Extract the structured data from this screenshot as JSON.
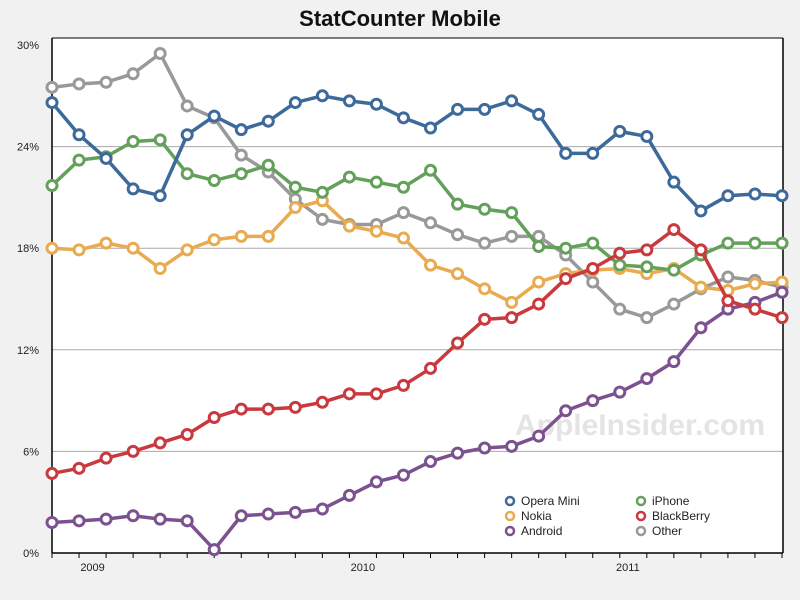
{
  "chart_data": {
    "type": "line",
    "title": "StatCounter Mobile",
    "watermark": "AppleInsider.com",
    "xlabel": "",
    "ylabel": "",
    "ylim": [
      0,
      30
    ],
    "yticks": [
      "0%",
      "6%",
      "12%",
      "18%",
      "24%",
      "30%"
    ],
    "ytick_values": [
      0,
      6,
      12,
      18,
      24,
      30
    ],
    "x_count": 28,
    "xtick_labels": [
      {
        "label": "2009",
        "at": 1.5
      },
      {
        "label": "2010",
        "at": 11.5
      },
      {
        "label": "2011",
        "at": 21.3
      }
    ],
    "grid": true,
    "legend_position": "bottom-right",
    "series": [
      {
        "name": "Opera Mini",
        "color": "#3d6a9a",
        "values": [
          26.6,
          24.7,
          23.3,
          21.5,
          21.1,
          24.7,
          25.8,
          25.0,
          25.5,
          26.6,
          27.0,
          26.7,
          26.5,
          25.7,
          25.1,
          26.2,
          26.2,
          26.7,
          25.9,
          23.6,
          23.6,
          24.9,
          24.6,
          21.9,
          20.2,
          21.1,
          21.2,
          21.1
        ]
      },
      {
        "name": "iPhone",
        "color": "#63a15a",
        "values": [
          21.7,
          23.2,
          23.4,
          24.3,
          24.4,
          22.4,
          22.0,
          22.4,
          22.9,
          21.6,
          21.3,
          22.2,
          21.9,
          21.6,
          22.6,
          20.6,
          20.3,
          20.1,
          18.1,
          18.0,
          18.3,
          17.0,
          16.9,
          16.7,
          17.6,
          18.3,
          18.3,
          18.3
        ]
      },
      {
        "name": "Nokia",
        "color": "#e8ab4f",
        "values": [
          18.0,
          17.9,
          18.3,
          18.0,
          16.8,
          17.9,
          18.5,
          18.7,
          18.7,
          20.4,
          20.8,
          19.3,
          19.0,
          18.6,
          17.0,
          16.5,
          15.6,
          14.8,
          16.0,
          16.5,
          16.7,
          16.8,
          16.5,
          16.8,
          15.7,
          15.5,
          15.9,
          16.0
        ]
      },
      {
        "name": "BlackBerry",
        "color": "#c9393d",
        "values": [
          4.7,
          5.0,
          5.6,
          6.0,
          6.5,
          7.0,
          8.0,
          8.5,
          8.5,
          8.6,
          8.9,
          9.4,
          9.4,
          9.9,
          10.9,
          12.4,
          13.8,
          13.9,
          14.7,
          16.2,
          16.8,
          17.7,
          17.9,
          19.1,
          17.9,
          14.9,
          14.4,
          13.9
        ]
      },
      {
        "name": "Android",
        "color": "#7c5190",
        "values": [
          1.8,
          1.9,
          2.0,
          2.2,
          2.0,
          1.9,
          0.2,
          2.2,
          2.3,
          2.4,
          2.6,
          3.4,
          4.2,
          4.6,
          5.4,
          5.9,
          6.2,
          6.3,
          6.9,
          8.4,
          9.0,
          9.5,
          10.3,
          11.3,
          13.3,
          14.4,
          14.8,
          15.4
        ]
      },
      {
        "name": "Other",
        "color": "#999999",
        "values": [
          27.5,
          27.7,
          27.8,
          28.3,
          29.5,
          26.4,
          25.7,
          23.5,
          22.5,
          20.9,
          19.7,
          19.4,
          19.4,
          20.1,
          19.5,
          18.8,
          18.3,
          18.7,
          18.7,
          17.6,
          16.0,
          14.4,
          13.9,
          14.7,
          15.6,
          16.3,
          16.1,
          15.7
        ]
      }
    ],
    "legend_order": [
      "Opera Mini",
      "iPhone",
      "Nokia",
      "BlackBerry",
      "Android",
      "Other"
    ]
  }
}
